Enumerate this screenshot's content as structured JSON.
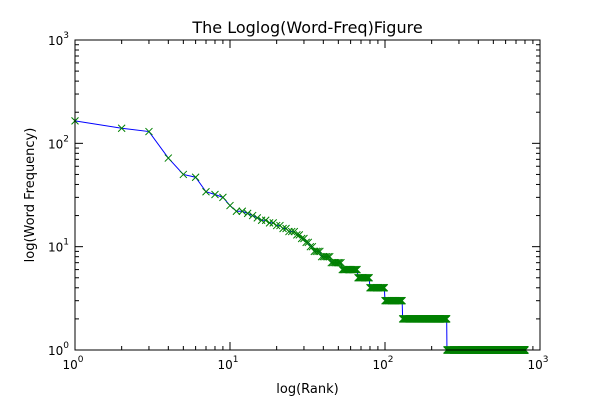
{
  "chart_data": {
    "type": "line",
    "title": "The Loglog(Word-Freq)Figure",
    "xlabel": "log(Rank)",
    "ylabel": "log(Word Frequency)",
    "xscale": "log",
    "yscale": "log",
    "xlim": [
      1,
      1000
    ],
    "ylim": [
      1,
      1000
    ],
    "x_ticks": [
      {
        "base": "10",
        "exp": "0"
      },
      {
        "base": "10",
        "exp": "1"
      },
      {
        "base": "10",
        "exp": "2"
      },
      {
        "base": "10",
        "exp": "3"
      }
    ],
    "y_ticks": [
      {
        "base": "10",
        "exp": "0"
      },
      {
        "base": "10",
        "exp": "1"
      },
      {
        "base": "10",
        "exp": "2"
      },
      {
        "base": "10",
        "exp": "3"
      }
    ],
    "grid": false,
    "legend": "none",
    "series": [
      {
        "line_color": "#0000ff",
        "marker": "x",
        "marker_color": "#008000",
        "runs": [
          {
            "x_start": 1,
            "x_end": 1,
            "y": 165
          },
          {
            "x_start": 2,
            "x_end": 2,
            "y": 140
          },
          {
            "x_start": 3,
            "x_end": 3,
            "y": 130
          },
          {
            "x_start": 4,
            "x_end": 4,
            "y": 72
          },
          {
            "x_start": 5,
            "x_end": 5,
            "y": 50
          },
          {
            "x_start": 6,
            "x_end": 6,
            "y": 47
          },
          {
            "x_start": 7,
            "x_end": 7,
            "y": 34
          },
          {
            "x_start": 8,
            "x_end": 8,
            "y": 32
          },
          {
            "x_start": 9,
            "x_end": 9,
            "y": 30
          },
          {
            "x_start": 10,
            "x_end": 10,
            "y": 25
          },
          {
            "x_start": 11,
            "x_end": 11,
            "y": 22
          },
          {
            "x_start": 12,
            "x_end": 12,
            "y": 22
          },
          {
            "x_start": 13,
            "x_end": 13,
            "y": 21
          },
          {
            "x_start": 14,
            "x_end": 14,
            "y": 20
          },
          {
            "x_start": 15,
            "x_end": 15,
            "y": 19
          },
          {
            "x_start": 16,
            "x_end": 16,
            "y": 18
          },
          {
            "x_start": 17,
            "x_end": 17,
            "y": 18
          },
          {
            "x_start": 18,
            "x_end": 18,
            "y": 17
          },
          {
            "x_start": 19,
            "x_end": 19,
            "y": 17
          },
          {
            "x_start": 20,
            "x_end": 20,
            "y": 16
          },
          {
            "x_start": 21,
            "x_end": 21,
            "y": 16
          },
          {
            "x_start": 22,
            "x_end": 22,
            "y": 15
          },
          {
            "x_start": 23,
            "x_end": 23,
            "y": 15
          },
          {
            "x_start": 24,
            "x_end": 24,
            "y": 14
          },
          {
            "x_start": 25,
            "x_end": 26,
            "y": 14
          },
          {
            "x_start": 27,
            "x_end": 28,
            "y": 13
          },
          {
            "x_start": 29,
            "x_end": 30,
            "y": 12
          },
          {
            "x_start": 31,
            "x_end": 32,
            "y": 11
          },
          {
            "x_start": 33,
            "x_end": 34,
            "y": 10
          },
          {
            "x_start": 35,
            "x_end": 38,
            "y": 9
          },
          {
            "x_start": 39,
            "x_end": 44,
            "y": 8
          },
          {
            "x_start": 45,
            "x_end": 52,
            "y": 7
          },
          {
            "x_start": 53,
            "x_end": 66,
            "y": 6
          },
          {
            "x_start": 67,
            "x_end": 79,
            "y": 5
          },
          {
            "x_start": 80,
            "x_end": 99,
            "y": 4
          },
          {
            "x_start": 100,
            "x_end": 129,
            "y": 3
          },
          {
            "x_start": 130,
            "x_end": 250,
            "y": 2
          },
          {
            "x_start": 251,
            "x_end": 800,
            "y": 1
          }
        ]
      }
    ]
  }
}
